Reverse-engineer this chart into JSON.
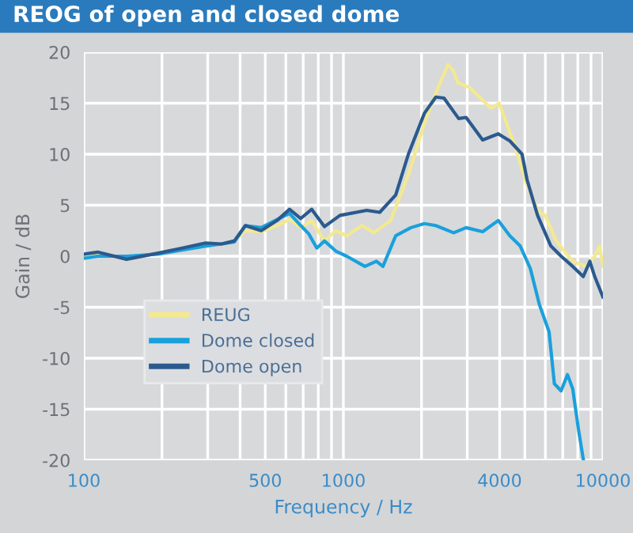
{
  "chart_data": {
    "type": "line",
    "title": "REOG of open and closed dome",
    "xlabel": "Frequency / Hz",
    "ylabel": "Gain / dB",
    "log": "x",
    "grid": true,
    "legend": "center left",
    "xlim": [
      100,
      10000
    ],
    "ylim": [
      -20,
      20
    ],
    "xticks": [
      100,
      {
        "value": 200,
        "label": null
      },
      {
        "value": 300,
        "label": null
      },
      {
        "value": 400,
        "label": null
      },
      500,
      {
        "value": 600,
        "label": null
      },
      {
        "value": 700,
        "label": null
      },
      {
        "value": 800,
        "label": null
      },
      {
        "value": 900,
        "label": null
      },
      1000,
      {
        "value": 2000,
        "label": null
      },
      {
        "value": 3000,
        "label": null
      },
      4000,
      {
        "value": 5000,
        "label": null
      },
      {
        "value": 6000,
        "label": null
      },
      {
        "value": 7000,
        "label": null
      },
      {
        "value": 8000,
        "label": null
      },
      {
        "value": 9000,
        "label": null
      },
      10000
    ],
    "yticks": [
      -20,
      -15,
      -10,
      -5,
      0,
      5,
      10,
      15,
      20
    ],
    "series": [
      {
        "name": "REUG",
        "color": "#f3e98f",
        "x": [
          100,
          113,
          146,
          193,
          239,
          295,
          339,
          380,
          419,
          482,
          555,
          620,
          685,
          755,
          845,
          935,
          1030,
          1180,
          1310,
          1520,
          1780,
          2050,
          2270,
          2530,
          2650,
          2760,
          3080,
          3700,
          3980,
          4480,
          5100,
          5600,
          6000,
          6600,
          7650,
          8600,
          9300,
          9700,
          10000
        ],
        "values": [
          0,
          0.3,
          null,
          null,
          null,
          null,
          null,
          1.5,
          2.5,
          2.4,
          3.0,
          3.6,
          2.8,
          3.5,
          1.5,
          2.5,
          2.0,
          3.0,
          2.3,
          3.5,
          8.0,
          13.0,
          16.0,
          18.8,
          18.2,
          17.0,
          16.5,
          14.5,
          15.0,
          11.5,
          7.0,
          4.5,
          4.0,
          1.5,
          -0.5,
          -1.0,
          0.0,
          1.0,
          -1.0
        ]
      },
      {
        "name": "Dome closed",
        "color": "#1aa0dc",
        "x": [
          100,
          113,
          146,
          193,
          239,
          295,
          339,
          380,
          419,
          482,
          555,
          620,
          685,
          735,
          790,
          845,
          935,
          1030,
          1210,
          1340,
          1420,
          1590,
          1820,
          2050,
          2270,
          2660,
          2970,
          3440,
          3950,
          4380,
          4800,
          5250,
          5700,
          6200,
          6500,
          6900,
          7300,
          7650,
          8050,
          8400
        ],
        "values": [
          -0.2,
          0.0,
          0.0,
          0.2,
          0.6,
          1.0,
          1.2,
          1.4,
          3.0,
          2.8,
          3.6,
          4.2,
          3.0,
          2.2,
          0.8,
          1.5,
          0.5,
          0.0,
          -1.0,
          -0.5,
          -1.0,
          2.0,
          2.8,
          3.2,
          3.0,
          2.3,
          2.8,
          2.4,
          3.5,
          2.0,
          1.0,
          -1.2,
          -4.8,
          -7.4,
          -12.5,
          -13.2,
          -11.6,
          -13.0,
          -17.0,
          -19.9
        ]
      },
      {
        "name": "Dome open",
        "color": "#2b5a8e",
        "x": [
          100,
          113,
          146,
          193,
          239,
          295,
          339,
          380,
          419,
          482,
          555,
          620,
          685,
          755,
          845,
          970,
          1230,
          1380,
          1590,
          1780,
          2050,
          2270,
          2440,
          2780,
          2970,
          3440,
          3950,
          4380,
          4880,
          5100,
          5600,
          6300,
          6900,
          7650,
          8400,
          8900,
          9300,
          10000
        ],
        "values": [
          0.2,
          0.4,
          -0.3,
          0.3,
          0.8,
          1.3,
          1.2,
          1.5,
          3.0,
          2.5,
          3.5,
          4.6,
          3.7,
          4.6,
          2.9,
          4.0,
          4.5,
          4.3,
          6.0,
          10.0,
          14.0,
          15.6,
          15.5,
          13.5,
          13.6,
          11.4,
          12.0,
          11.3,
          10.0,
          7.5,
          4.0,
          1.0,
          0.0,
          -1.0,
          -2.0,
          -0.5,
          -2.0,
          -4.0
        ]
      }
    ]
  }
}
